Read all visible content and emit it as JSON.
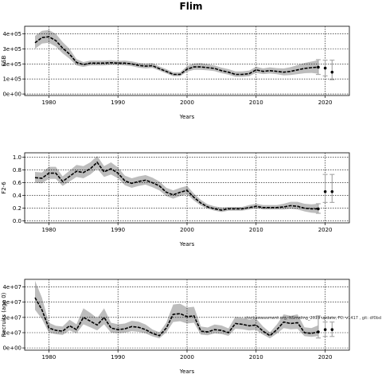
{
  "title": "Flim",
  "chart_data": [
    {
      "type": "line",
      "ylabel": "SSB",
      "xlabel": "Years",
      "xlim": [
        1976.5,
        2023.5
      ],
      "ylim": [
        -10000,
        450000
      ],
      "xticks": [
        1980,
        1990,
        2000,
        2010,
        2020
      ],
      "xtick_labels": [
        "1980",
        "1990",
        "2000",
        "2010",
        "2020"
      ],
      "yticks": [
        0,
        100000,
        200000,
        300000,
        400000
      ],
      "ytick_labels": [
        "0e+00",
        "1e+05",
        "2e+05",
        "3e+05",
        "4e+05"
      ],
      "grid": true,
      "x": [
        1978,
        1979,
        1980,
        1981,
        1982,
        1983,
        1984,
        1985,
        1986,
        1987,
        1988,
        1989,
        1990,
        1991,
        1992,
        1993,
        1994,
        1995,
        1996,
        1997,
        1998,
        1999,
        2000,
        2001,
        2002,
        2003,
        2004,
        2005,
        2006,
        2007,
        2008,
        2009,
        2010,
        2011,
        2012,
        2013,
        2014,
        2015,
        2016,
        2017,
        2018,
        2019
      ],
      "estimate": [
        340000,
        375000,
        380000,
        355000,
        305000,
        265000,
        210000,
        195000,
        205000,
        205000,
        205000,
        208000,
        205000,
        205000,
        200000,
        190000,
        185000,
        188000,
        168000,
        150000,
        130000,
        130000,
        165000,
        180000,
        180000,
        175000,
        170000,
        155000,
        145000,
        130000,
        130000,
        135000,
        160000,
        150000,
        155000,
        150000,
        145000,
        150000,
        160000,
        170000,
        175000,
        178000
      ],
      "lower": [
        300000,
        335000,
        340000,
        315000,
        270000,
        235000,
        190000,
        180000,
        190000,
        190000,
        190000,
        193000,
        192000,
        190000,
        185000,
        175000,
        170000,
        173000,
        155000,
        137000,
        118000,
        118000,
        148000,
        160000,
        160000,
        157000,
        152000,
        138000,
        128000,
        114000,
        114000,
        118000,
        140000,
        132000,
        136000,
        131000,
        124000,
        126000,
        132000,
        138000,
        140000,
        135000
      ],
      "upper": [
        385000,
        420000,
        425000,
        400000,
        345000,
        300000,
        232000,
        212000,
        222000,
        222000,
        222000,
        225000,
        220000,
        222000,
        217000,
        207000,
        202000,
        205000,
        183000,
        165000,
        145000,
        145000,
        185000,
        203000,
        205000,
        197000,
        190000,
        175000,
        165000,
        150000,
        150000,
        155000,
        182000,
        170000,
        177000,
        172000,
        170000,
        178000,
        192000,
        206000,
        215000,
        225000
      ],
      "forecast_x": [
        2019,
        2020,
        2021
      ],
      "forecast_y": [
        178000,
        172000,
        145000
      ],
      "forecast_lower": [
        130000,
        120000,
        95000
      ],
      "forecast_upper": [
        228000,
        225000,
        225000
      ]
    },
    {
      "type": "line",
      "ylabel": "F2-6",
      "xlabel": "Years",
      "xlim": [
        1976.5,
        2023.5
      ],
      "ylim": [
        -0.03,
        1.07
      ],
      "xticks": [
        1980,
        1990,
        2000,
        2010,
        2020
      ],
      "xtick_labels": [
        "1980",
        "1990",
        "2000",
        "2010",
        "2020"
      ],
      "yticks": [
        0,
        0.2,
        0.4,
        0.6,
        0.8,
        1.0
      ],
      "ytick_labels": [
        "0.0",
        "0.2",
        "0.4",
        "0.6",
        "0.8",
        "1.0"
      ],
      "grid": true,
      "x": [
        1978,
        1979,
        1980,
        1981,
        1982,
        1983,
        1984,
        1985,
        1986,
        1987,
        1988,
        1989,
        1990,
        1991,
        1992,
        1993,
        1994,
        1995,
        1996,
        1997,
        1998,
        1999,
        2000,
        2001,
        2002,
        2003,
        2004,
        2005,
        2006,
        2007,
        2008,
        2009,
        2010,
        2011,
        2012,
        2013,
        2014,
        2015,
        2016,
        2017,
        2018,
        2019
      ],
      "estimate": [
        0.68,
        0.67,
        0.75,
        0.75,
        0.62,
        0.7,
        0.78,
        0.76,
        0.82,
        0.92,
        0.77,
        0.82,
        0.75,
        0.63,
        0.59,
        0.62,
        0.64,
        0.6,
        0.55,
        0.45,
        0.41,
        0.45,
        0.48,
        0.37,
        0.28,
        0.22,
        0.19,
        0.17,
        0.19,
        0.19,
        0.19,
        0.21,
        0.23,
        0.21,
        0.21,
        0.21,
        0.22,
        0.24,
        0.23,
        0.2,
        0.19,
        0.19
      ],
      "lower": [
        0.6,
        0.59,
        0.66,
        0.66,
        0.55,
        0.62,
        0.69,
        0.67,
        0.73,
        0.82,
        0.69,
        0.73,
        0.67,
        0.56,
        0.52,
        0.55,
        0.57,
        0.53,
        0.48,
        0.39,
        0.35,
        0.39,
        0.42,
        0.32,
        0.24,
        0.19,
        0.16,
        0.14,
        0.16,
        0.16,
        0.16,
        0.18,
        0.2,
        0.18,
        0.18,
        0.18,
        0.18,
        0.19,
        0.18,
        0.15,
        0.13,
        0.12
      ],
      "upper": [
        0.77,
        0.76,
        0.85,
        0.85,
        0.7,
        0.79,
        0.88,
        0.86,
        0.92,
        1.02,
        0.86,
        0.92,
        0.84,
        0.71,
        0.67,
        0.7,
        0.72,
        0.68,
        0.62,
        0.52,
        0.48,
        0.52,
        0.55,
        0.43,
        0.33,
        0.26,
        0.23,
        0.21,
        0.22,
        0.22,
        0.22,
        0.25,
        0.27,
        0.25,
        0.25,
        0.25,
        0.27,
        0.3,
        0.3,
        0.27,
        0.26,
        0.27
      ],
      "forecast_x": [
        2019,
        2020,
        2021
      ],
      "forecast_y": [
        0.19,
        0.46,
        0.46
      ],
      "forecast_lower": [
        0.12,
        0.29,
        0.29
      ],
      "forecast_upper": [
        0.27,
        0.73,
        0.73
      ]
    },
    {
      "type": "line",
      "ylabel": "Recruits (age 0)",
      "xlabel": "Years",
      "xlim": [
        1976.5,
        2023.5
      ],
      "ylim": [
        -1500000,
        45000000
      ],
      "xticks": [
        1980,
        1990,
        2000,
        2010,
        2020
      ],
      "xtick_labels": [
        "1980",
        "1990",
        "2000",
        "2010",
        "2020"
      ],
      "yticks": [
        0,
        10000000,
        20000000,
        30000000,
        40000000
      ],
      "ytick_labels": [
        "0e+00",
        "1e+07",
        "2e+07",
        "3e+07",
        "4e+07"
      ],
      "grid": true,
      "x": [
        1978,
        1979,
        1980,
        1981,
        1982,
        1983,
        1984,
        1985,
        1986,
        1987,
        1988,
        1989,
        1990,
        1991,
        1992,
        1993,
        1994,
        1995,
        1996,
        1997,
        1998,
        1999,
        2000,
        2001,
        2002,
        2003,
        2004,
        2005,
        2006,
        2007,
        2008,
        2009,
        2010,
        2011,
        2012,
        2013,
        2014,
        2015,
        2016,
        2017,
        2018,
        2019
      ],
      "estimate": [
        33000000,
        25000000,
        13000000,
        11500000,
        11000000,
        14500000,
        12000000,
        20000000,
        17500000,
        15000000,
        20000000,
        13000000,
        12000000,
        12500000,
        14000000,
        13500000,
        12000000,
        9500000,
        8000000,
        13000000,
        22000000,
        22500000,
        20500000,
        21000000,
        11000000,
        10500000,
        12000000,
        11500000,
        10000000,
        16000000,
        15500000,
        14500000,
        15000000,
        11000000,
        8000000,
        12000000,
        17000000,
        16000000,
        16500000,
        10000000,
        9500000,
        10500000
      ],
      "lower": [
        25000000,
        19000000,
        10000000,
        9000000,
        8500000,
        11500000,
        9500000,
        15500000,
        13500000,
        11500000,
        15500000,
        10000000,
        9500000,
        10000000,
        11000000,
        10500000,
        9500000,
        7500000,
        6300000,
        10200000,
        17000000,
        17500000,
        16000000,
        16500000,
        8700000,
        8300000,
        9500000,
        9100000,
        7900000,
        12600000,
        12200000,
        11400000,
        11800000,
        8700000,
        6300000,
        9400000,
        13000000,
        12200000,
        12500000,
        7700000,
        7200000,
        7800000
      ],
      "upper": [
        44000000,
        33000000,
        16500000,
        14500000,
        14000000,
        18500000,
        15500000,
        26000000,
        23000000,
        19500000,
        26000000,
        16500000,
        15500000,
        16000000,
        17800000,
        17200000,
        15300000,
        12100000,
        10200000,
        16600000,
        28500000,
        29000000,
        26500000,
        27000000,
        14000000,
        13400000,
        15300000,
        14700000,
        12800000,
        20500000,
        19800000,
        18500000,
        19200000,
        14000000,
        10200000,
        15400000,
        22000000,
        21000000,
        22000000,
        13500000,
        13000000,
        14800000
      ],
      "forecast_x": [
        2019,
        2020,
        2021
      ],
      "forecast_y": [
        10500000,
        12000000,
        12000000
      ],
      "forecast_lower": [
        6500000,
        7500000,
        7500000
      ],
      "forecast_upper": [
        21000000,
        17000000,
        17000000
      ]
    }
  ],
  "note": "stockassessment.org, NSmeling_2019 update, FC: v1417 , git: df0bd"
}
